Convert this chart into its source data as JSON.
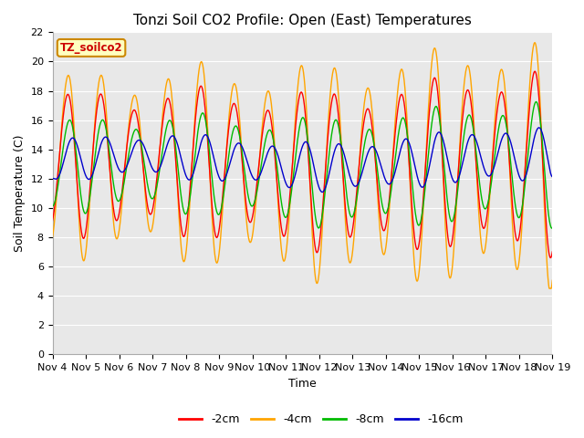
{
  "title": "Tonzi Soil CO2 Profile: Open (East) Temperatures",
  "xlabel": "Time",
  "ylabel": "Soil Temperature (C)",
  "ylim": [
    0,
    22
  ],
  "yticks": [
    0,
    2,
    4,
    6,
    8,
    10,
    12,
    14,
    16,
    18,
    20,
    22
  ],
  "xtick_labels": [
    "Nov 4",
    "Nov 5",
    "Nov 6",
    "Nov 7",
    "Nov 8",
    "Nov 9",
    "Nov 10",
    "Nov 11",
    "Nov 12",
    "Nov 13",
    "Nov 14",
    "Nov 15",
    "Nov 16",
    "Nov 17",
    "Nov 18",
    "Nov 19"
  ],
  "legend_label": "TZ_soilco2",
  "series_labels": [
    "-2cm",
    "-4cm",
    "-8cm",
    "-16cm"
  ],
  "series_colors": [
    "#ff0000",
    "#ffa500",
    "#00bb00",
    "#0000cc"
  ],
  "fig_bg_color": "#ffffff",
  "plot_bg_color": "#e8e8e8",
  "grid_color": "#ffffff",
  "title_fontsize": 11,
  "axis_label_fontsize": 9,
  "tick_fontsize": 8,
  "n_days": 15,
  "samples_per_day": 144
}
